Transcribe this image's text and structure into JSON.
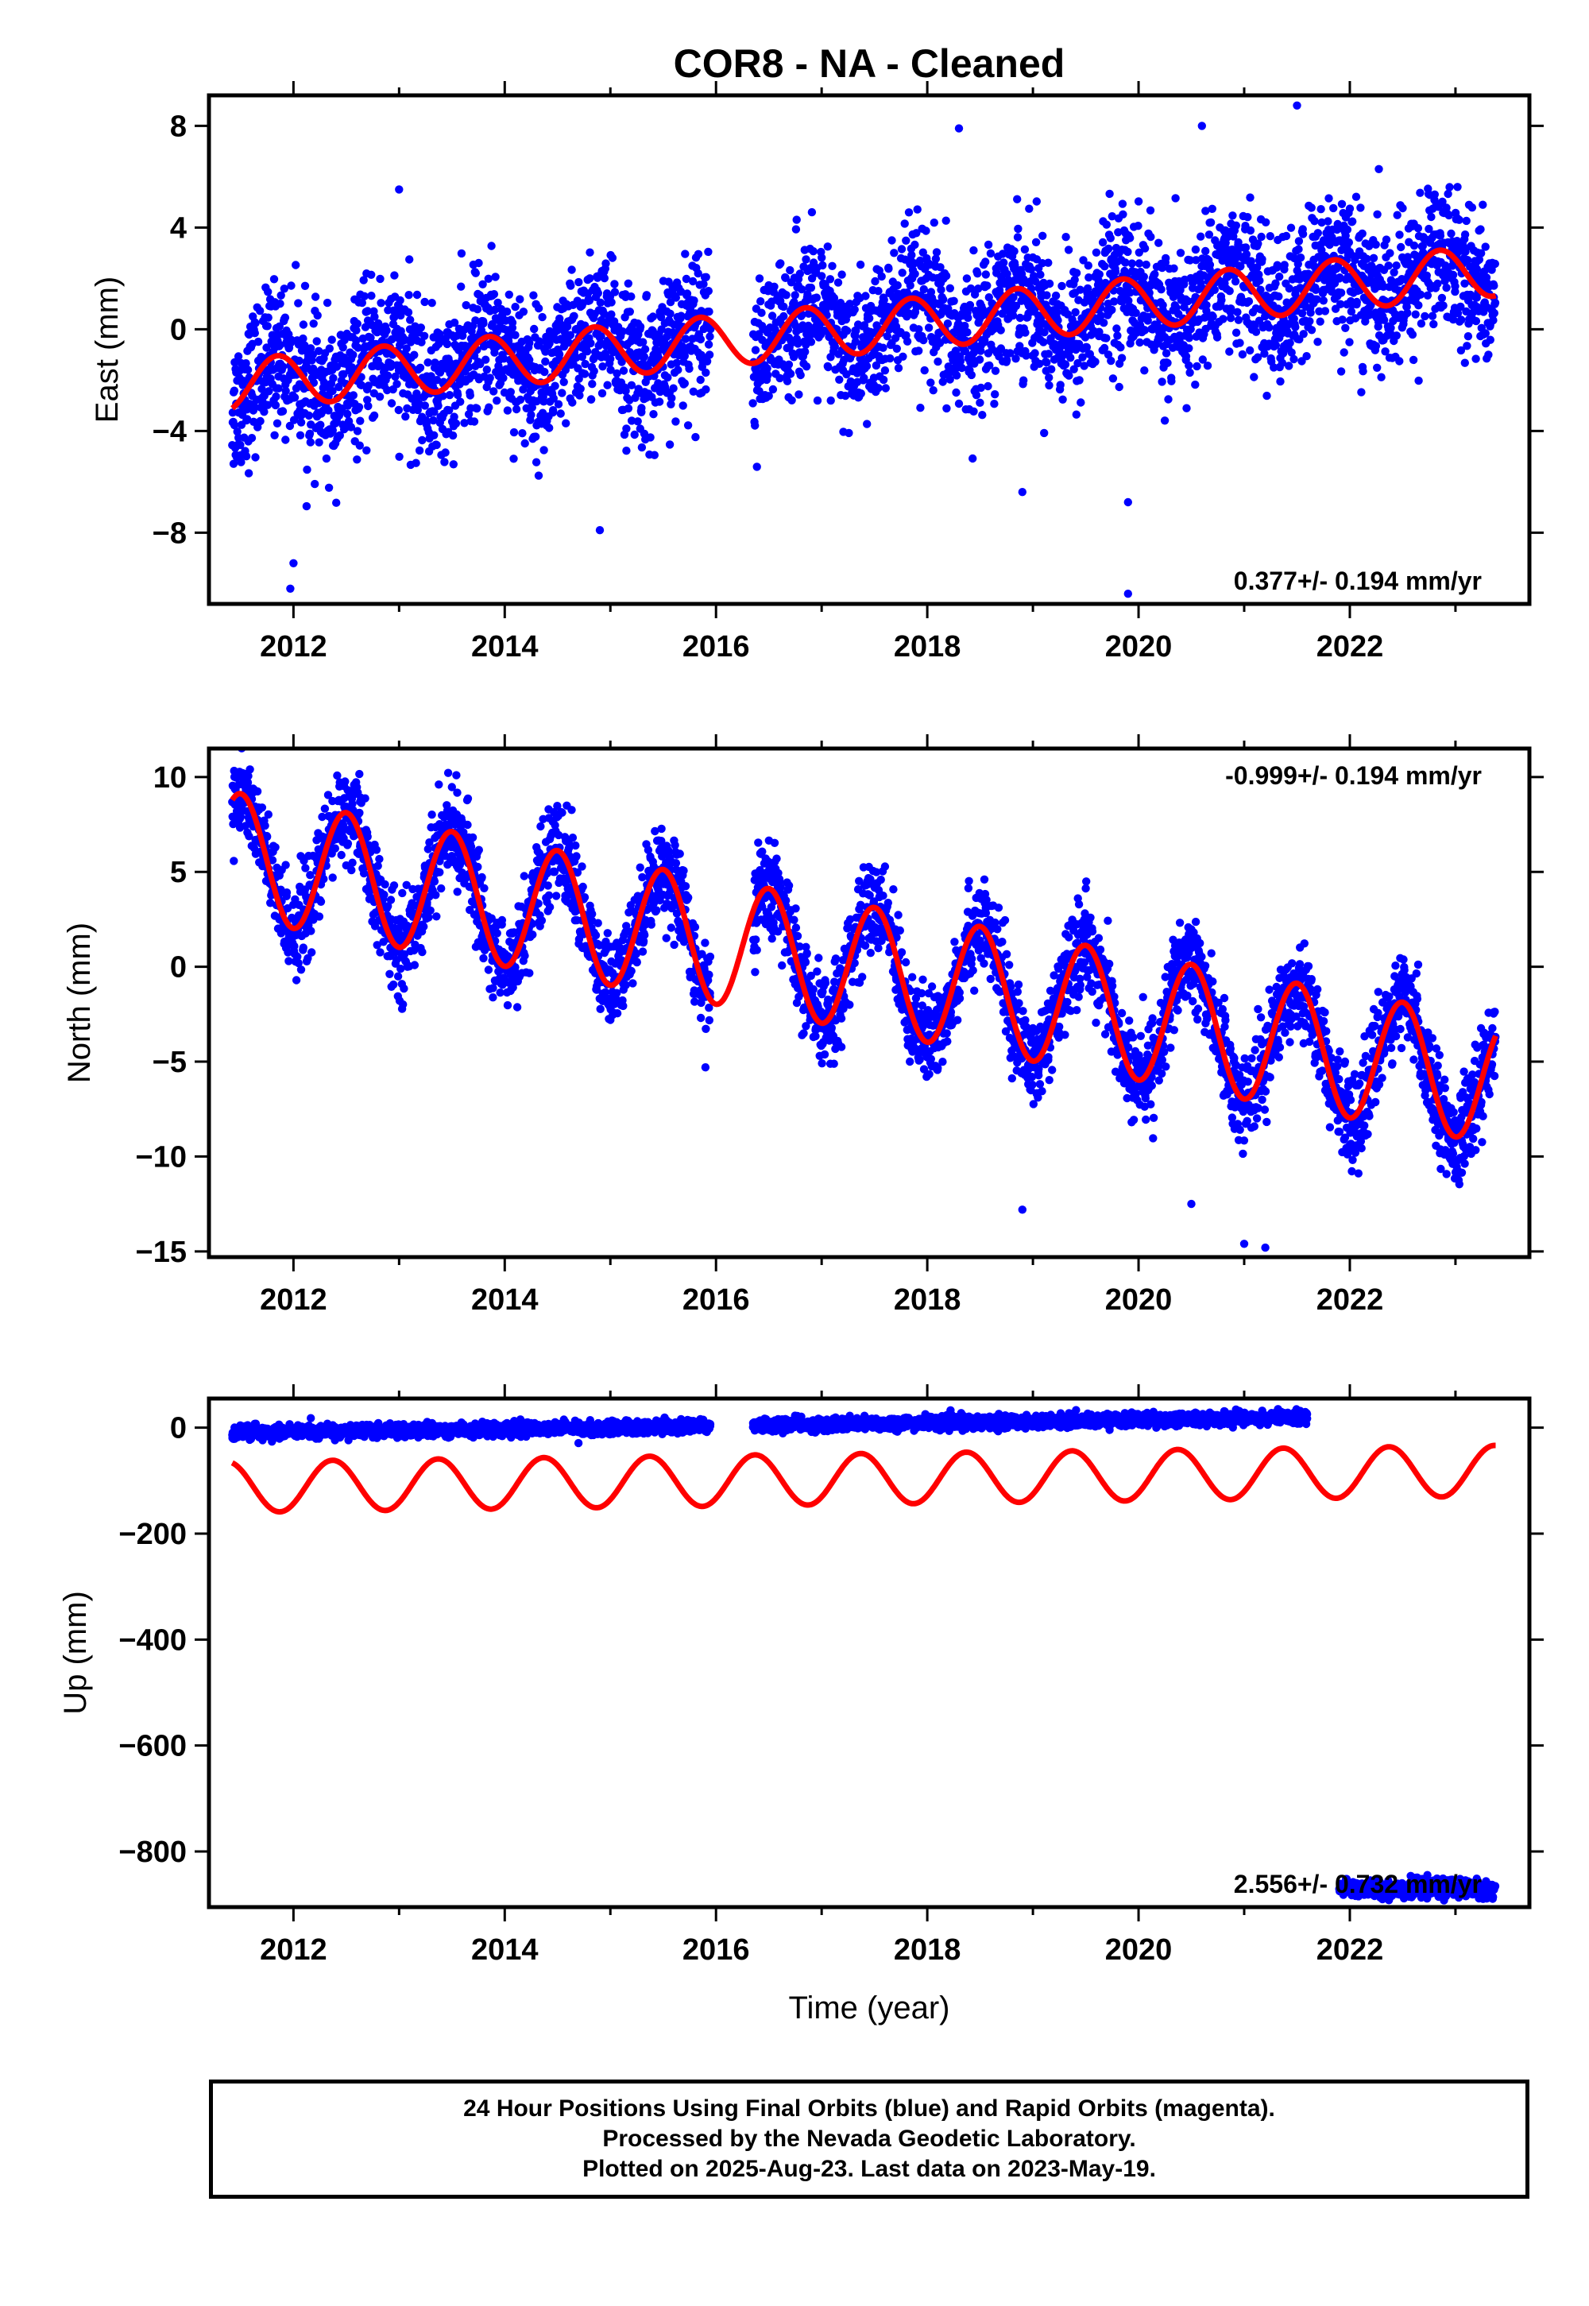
{
  "figure": {
    "title": "COR8  - NA - Cleaned",
    "footer": [
      "24 Hour Positions Using Final Orbits (blue) and Rapid Orbits (magenta).",
      "Processed by the Nevada Geodetic Laboratory.",
      "Plotted on 2025-Aug-23. Last data on 2023-May-19."
    ]
  },
  "chart_data": [
    {
      "type": "scatter",
      "panel": "east",
      "ylabel": "East (mm)",
      "xlabel": "",
      "xlim": [
        2011.2,
        2023.7
      ],
      "ylim": [
        -10.8,
        9.2
      ],
      "xticks": [
        2012,
        2014,
        2016,
        2018,
        2020,
        2022
      ],
      "xtick_labels": [
        "2012",
        "2014",
        "2016",
        "2018",
        "2020",
        "2022"
      ],
      "yticks": [
        -8,
        -4,
        0,
        4,
        8
      ],
      "ytick_labels": [
        "−8",
        "−4",
        "0",
        "4",
        "8"
      ],
      "rate_text": "0.377+/- 0.194 mm/yr",
      "rate_position": "bottom-right",
      "colors": {
        "points": "#0000ff",
        "model": "#ff0000"
      },
      "segments": [
        [
          2011.42,
          2015.95
        ],
        [
          2016.35,
          2023.38
        ]
      ],
      "model": {
        "offset": -2.2,
        "rate": 0.377,
        "rate_ref": 2011.42,
        "amp": 1.0,
        "phase": 0.6,
        "period": 1.0
      },
      "data_trend": {
        "base": -2.6,
        "slope": 0.38
      },
      "series_trend_points": [
        [
          2011.5,
          -2.7
        ],
        [
          2013.5,
          -1.6
        ],
        [
          2015.5,
          -0.6
        ],
        [
          2017.5,
          0.3
        ],
        [
          2019.5,
          1.0
        ],
        [
          2021.5,
          1.9
        ],
        [
          2023.3,
          2.2
        ]
      ],
      "scatter_sigma": 1.4,
      "outliers": [
        [
          2012.0,
          -9.2
        ],
        [
          2011.97,
          -10.2
        ],
        [
          2013.0,
          5.5
        ],
        [
          2014.9,
          -7.9
        ],
        [
          2018.3,
          7.9
        ],
        [
          2020.6,
          8.0
        ],
        [
          2021.5,
          8.8
        ],
        [
          2019.9,
          -10.4
        ],
        [
          2019.9,
          -6.8
        ],
        [
          2018.9,
          -6.4
        ]
      ]
    },
    {
      "type": "scatter",
      "panel": "north",
      "ylabel": "North (mm)",
      "xlabel": "",
      "xlim": [
        2011.2,
        2023.7
      ],
      "ylim": [
        -15.3,
        11.5
      ],
      "xticks": [
        2012,
        2014,
        2016,
        2018,
        2020,
        2022
      ],
      "xtick_labels": [
        "2012",
        "2014",
        "2016",
        "2018",
        "2020",
        "2022"
      ],
      "yticks": [
        -15,
        -10,
        -5,
        0,
        5,
        10
      ],
      "ytick_labels": [
        "−15",
        "−10",
        "−5",
        "0",
        "5",
        "10"
      ],
      "rate_text": "-0.999+/- 0.194 mm/yr",
      "rate_position": "top-right",
      "colors": {
        "points": "#0000ff",
        "model": "#ff0000"
      },
      "segments": [
        [
          2011.42,
          2015.95
        ],
        [
          2016.35,
          2023.38
        ]
      ],
      "model": {
        "offset": 5.9,
        "rate": -0.999,
        "rate_ref": 2011.42,
        "amp": 3.3,
        "phase": 0.25,
        "period": 1.0
      },
      "data_trend": {
        "base": 5.9,
        "slope": -1.0
      },
      "series_trend_points": [
        [
          2011.5,
          8.8
        ],
        [
          2013.5,
          4.2
        ],
        [
          2015.5,
          2.2
        ],
        [
          2017.5,
          -0.5
        ],
        [
          2019.5,
          -2.5
        ],
        [
          2021.5,
          -4.5
        ],
        [
          2023.3,
          -7.0
        ]
      ],
      "scatter_sigma": 1.2,
      "outliers": [
        [
          2021.0,
          -14.6
        ],
        [
          2021.2,
          -14.8
        ],
        [
          2020.5,
          -12.5
        ],
        [
          2018.9,
          -12.8
        ],
        [
          2015.9,
          -5.3
        ]
      ]
    },
    {
      "type": "scatter",
      "panel": "up",
      "ylabel": "Up (mm)",
      "xlabel": "Time (year)",
      "xlim": [
        2011.2,
        2023.7
      ],
      "ylim": [
        -905,
        55
      ],
      "xticks": [
        2012,
        2014,
        2016,
        2018,
        2020,
        2022
      ],
      "xtick_labels": [
        "2012",
        "2014",
        "2016",
        "2018",
        "2020",
        "2022"
      ],
      "yticks": [
        -800,
        -600,
        -400,
        -200,
        0
      ],
      "ytick_labels": [
        "−800",
        "−600",
        "−400",
        "−200",
        "0"
      ],
      "rate_text": "2.556+/- 0.732 mm/yr",
      "rate_position": "bottom-right",
      "colors": {
        "points": "#0000ff",
        "model": "#ff0000"
      },
      "segments": [
        [
          2011.42,
          2015.95
        ],
        [
          2016.35,
          2021.6
        ]
      ],
      "late_cluster": {
        "range": [
          2021.9,
          2023.38
        ],
        "level": -870,
        "spread": 8
      },
      "model": {
        "offset": -112,
        "rate": 2.556,
        "rate_ref": 2011.42,
        "amp": 48,
        "phase": 0.12,
        "period": 1.0
      },
      "data_trend": {
        "base": -10,
        "slope": 2.9
      },
      "scatter_sigma": 6,
      "outliers": []
    }
  ]
}
